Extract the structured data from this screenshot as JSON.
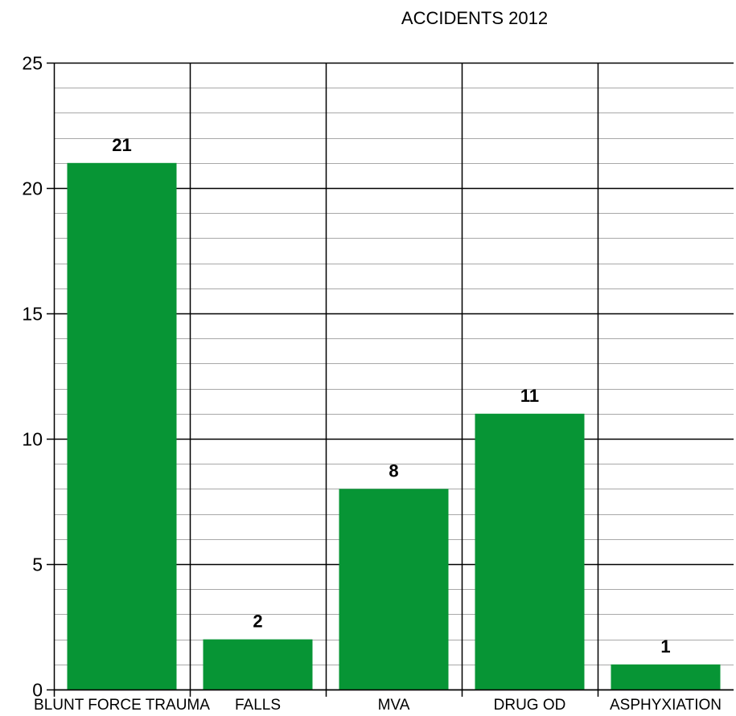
{
  "chart_data": {
    "type": "bar",
    "title": "ACCIDENTS 2012",
    "categories": [
      "BLUNT FORCE TRAUMA",
      "FALLS",
      "MVA",
      "DRUG OD",
      "ASPHYXIATION"
    ],
    "values": [
      21,
      2,
      8,
      11,
      1
    ],
    "data_labels": [
      "21",
      "2",
      "8",
      "11",
      "1"
    ],
    "xlabel": "",
    "ylabel": "",
    "ylim": [
      0,
      25
    ],
    "yticks": [
      0,
      5,
      10,
      15,
      20,
      25
    ],
    "ytick_labels": [
      "0",
      "5",
      "10",
      "15",
      "20",
      "25"
    ],
    "minor_grid_step": 1,
    "grid": true,
    "legend": "none",
    "colors": {
      "bar": "#079535",
      "major_grid": "#000000",
      "minor_grid": "#a8a8a8",
      "background": "#ffffff"
    }
  }
}
